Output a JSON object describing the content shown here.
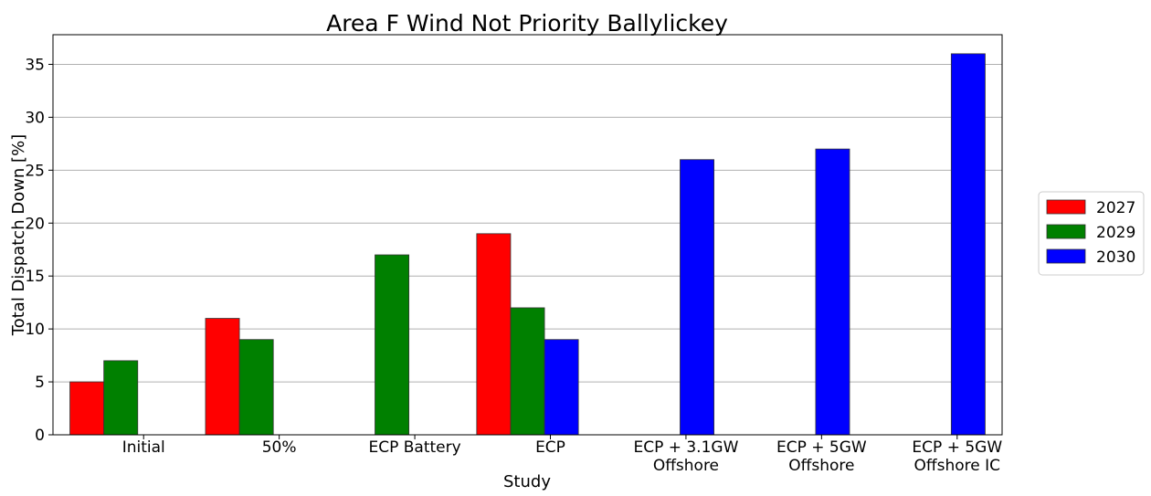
{
  "chart_data": {
    "type": "bar",
    "title": "Area F Wind Not Priority Ballylickey",
    "xlabel": "Study",
    "ylabel": "Total Dispatch Down [%]",
    "ylim": [
      0,
      37.8
    ],
    "yticks": [
      0,
      5,
      10,
      15,
      20,
      25,
      30,
      35
    ],
    "grid": true,
    "legend_position": "right",
    "categories": [
      [
        "Initial"
      ],
      [
        "50%"
      ],
      [
        "ECP Battery"
      ],
      [
        "ECP"
      ],
      [
        "ECP + 3.1GW",
        "Offshore"
      ],
      [
        "ECP + 5GW",
        "Offshore"
      ],
      [
        "ECP + 5GW",
        "Offshore IC"
      ]
    ],
    "series": [
      {
        "name": "2027",
        "color": "#ff0000",
        "values": [
          5,
          11,
          0,
          19,
          0,
          0,
          0
        ]
      },
      {
        "name": "2029",
        "color": "#008000",
        "values": [
          7,
          9,
          17,
          12,
          0,
          0,
          0
        ]
      },
      {
        "name": "2030",
        "color": "#0000ff",
        "values": [
          0,
          0,
          0,
          9,
          26,
          27,
          36
        ]
      }
    ]
  }
}
